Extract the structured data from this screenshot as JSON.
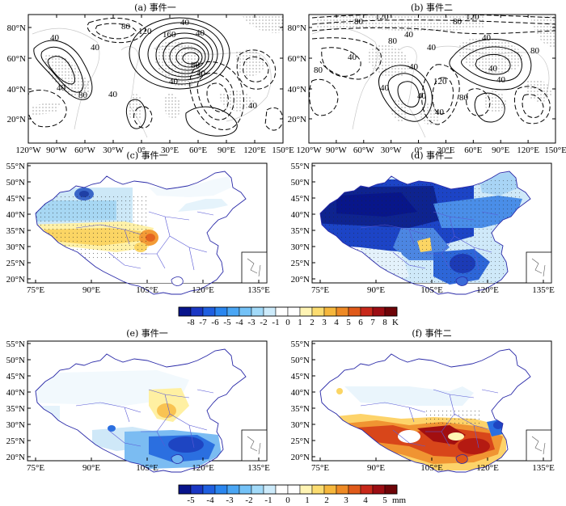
{
  "panels": {
    "a": {
      "title": "(a) 事件一",
      "contour_labels": [
        "40",
        "80",
        "120",
        "160",
        "80",
        "40",
        "40",
        "40",
        "80",
        "40",
        "40",
        "40",
        "40",
        "40"
      ]
    },
    "b": {
      "title": "(b) 事件二",
      "contour_labels": [
        "120",
        "80",
        "80",
        "120",
        "40",
        "80",
        "40",
        "40",
        "40",
        "80",
        "80",
        "40",
        "40",
        "40",
        "40",
        "80",
        "120",
        "40",
        "40"
      ]
    },
    "c": {
      "title": "(c) 事件一"
    },
    "d": {
      "title": "(d) 事件二"
    },
    "e": {
      "title": "(e) 事件一"
    },
    "f": {
      "title": "(f) 事件二"
    }
  },
  "top_axes": {
    "lat_ticks": [
      "80°N",
      "60°N",
      "40°N",
      "20°N"
    ],
    "lon_ticks": [
      "120°W",
      "90°W",
      "60°W",
      "30°W",
      "0°",
      "30°E",
      "60°E",
      "90°E",
      "120°E",
      "150°E"
    ]
  },
  "china_axes": {
    "lat_ticks": [
      "55°N",
      "50°N",
      "45°N",
      "40°N",
      "35°N",
      "30°N",
      "25°N",
      "20°N"
    ],
    "lon_ticks": [
      "75°E",
      "90°E",
      "105°E",
      "120°E",
      "135°E"
    ]
  },
  "colorbar_temp": {
    "labels": [
      "-8",
      "-7",
      "-6",
      "-5",
      "-4",
      "-3",
      "-2",
      "-1",
      "0",
      "1",
      "2",
      "3",
      "4",
      "5",
      "6",
      "7",
      "8"
    ],
    "unit": "K",
    "colors": [
      "#08148c",
      "#1a37c4",
      "#1f5fe0",
      "#2a86ef",
      "#4aa6f4",
      "#74c2f7",
      "#a2daf9",
      "#cdebfb",
      "#ffffff",
      "#ffffff",
      "#fff4b4",
      "#fbdc70",
      "#f6b73c",
      "#ee8a25",
      "#e05a1a",
      "#c8281a",
      "#9c0d13",
      "#6e0408"
    ]
  },
  "colorbar_precip": {
    "labels": [
      "-5",
      "-4",
      "-3",
      "-2",
      "-1",
      "0",
      "1",
      "2",
      "3",
      "4",
      "5"
    ],
    "unit": "mm",
    "colors": [
      "#08148c",
      "#1a37c4",
      "#1f5fe0",
      "#2a86ef",
      "#4aa6f4",
      "#74c2f7",
      "#a2daf9",
      "#cdebfb",
      "#ffffff",
      "#ffffff",
      "#fff4b4",
      "#fbdc70",
      "#f6b73c",
      "#ee8a25",
      "#e05a1a",
      "#c8281a",
      "#9c0d13",
      "#6e0408"
    ]
  }
}
